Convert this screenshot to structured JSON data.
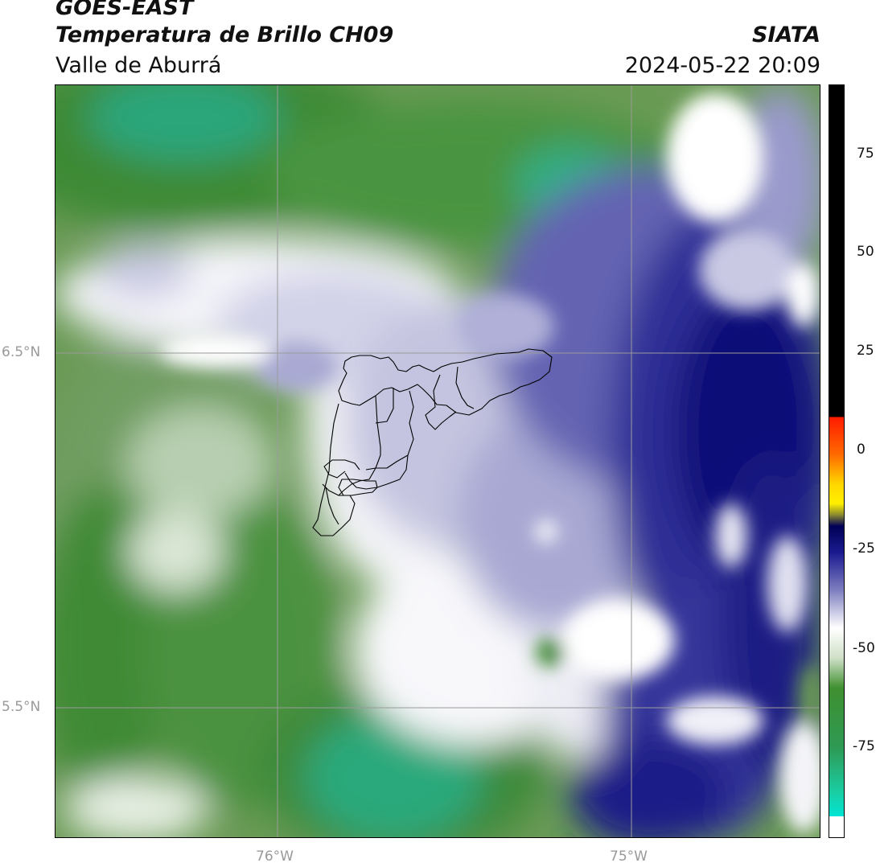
{
  "header": {
    "satellite": "GOES-EAST",
    "product": "Temperatura de Brillo CH09",
    "region": "Valle de Aburrá",
    "agency": "SIATA",
    "datetime": "2024-05-22 20:09"
  },
  "map": {
    "lat_labels": [
      "6.5°N",
      "5.5°N"
    ],
    "lon_labels": [
      "76°W",
      "75°W"
    ],
    "gridline_color": "#9a9a9a",
    "boundary_color": "#000000"
  },
  "colorbar": {
    "ticks": [
      "75",
      "50",
      "25",
      "0",
      "-25",
      "-50",
      "-75"
    ],
    "colors": {
      "black": "#000000",
      "red": "#ff2a00",
      "orange": "#ff8a00",
      "yellow": "#ffef00",
      "navy": "#000066",
      "periwinkle": "#9a9acc",
      "white": "#ffffff",
      "green": "#3f8f2f",
      "teal": "#1fbf8f",
      "cyan": "#00e5d4"
    }
  }
}
